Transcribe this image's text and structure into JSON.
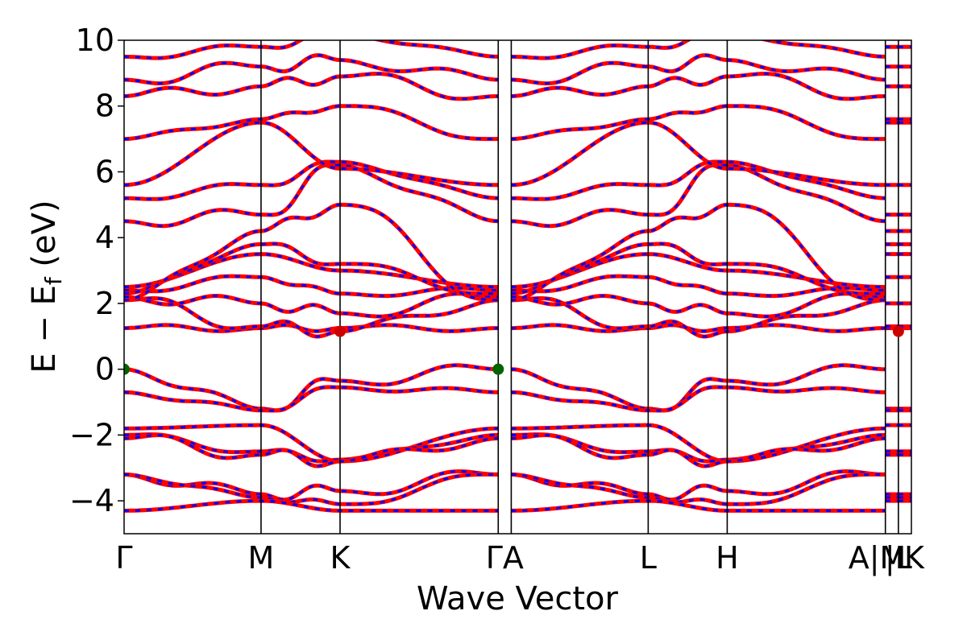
{
  "chart_data": {
    "type": "line",
    "title": "",
    "xlabel": "Wave Vector",
    "ylabel_main": "E − E",
    "ylabel_sub": "f",
    "ylabel_unit": " (eV)",
    "ylim": [
      -5,
      10
    ],
    "yticks": [
      -4,
      -2,
      0,
      2,
      4,
      6,
      8,
      10
    ],
    "ytick_labels": [
      "−4",
      "−2",
      "0",
      "2",
      "4",
      "6",
      "8",
      "10"
    ],
    "kpath": [
      {
        "label": "Γ",
        "k": 0.0
      },
      {
        "label": "M",
        "k": 1.0
      },
      {
        "label": "K",
        "k": 1.577
      },
      {
        "label": "Γ",
        "k": 2.732
      },
      {
        "label": "A",
        "k": 2.827
      },
      {
        "label": "L",
        "k": 3.827
      },
      {
        "label": "H",
        "k": 4.404
      },
      {
        "label": "A",
        "k": 5.559
      },
      {
        "label": "M",
        "k": 5.559
      },
      {
        "label": "L",
        "k": 5.654
      },
      {
        "label": "K",
        "k": 5.749
      }
    ],
    "xtick_text": [
      "Γ",
      "M",
      "K",
      "ΓA",
      "L",
      "H",
      "A|M",
      "|L",
      "K"
    ],
    "vbm_markers": [
      {
        "k": 0.0,
        "energy": 0.0
      },
      {
        "k": 2.732,
        "energy": 0.0
      }
    ],
    "cbm_markers": [
      {
        "k": 1.577,
        "energy": 1.15
      },
      {
        "k": 5.654,
        "energy": 1.15
      }
    ],
    "series": [
      {
        "spin": "up",
        "color": "#0000ff"
      },
      {
        "spin": "down",
        "color": "#ff0000"
      }
    ],
    "valence_bands": [
      {
        "g": 0.0,
        "m": -1.2,
        "k": -0.35,
        "h": -0.35,
        "l": -1.2
      },
      {
        "g": -0.7,
        "m": -1.25,
        "k": -0.55,
        "h": -0.55,
        "l": -1.25
      },
      {
        "g": -1.8,
        "m": -1.7,
        "k": -2.8,
        "h": -2.8,
        "l": -1.7
      },
      {
        "g": -2.0,
        "m": -2.5,
        "k": -2.75,
        "h": -2.75,
        "l": -2.5
      },
      {
        "g": -2.1,
        "m": -2.6,
        "k": -2.8,
        "h": -2.8,
        "l": -2.6
      },
      {
        "g": -3.2,
        "m": -3.8,
        "k": -3.7,
        "h": -3.7,
        "l": -3.8
      },
      {
        "g": -3.2,
        "m": -3.9,
        "k": -4.1,
        "h": -4.1,
        "l": -3.9
      },
      {
        "g": -4.3,
        "m": -4.0,
        "k": -4.3,
        "h": -4.3,
        "l": -4.0
      }
    ],
    "conduction_bands": [
      {
        "g": 1.25,
        "m": 1.25,
        "k": 1.25,
        "h": 1.25,
        "l": 1.25
      },
      {
        "g": 2.1,
        "m": 1.3,
        "k": 1.15,
        "h": 1.15,
        "l": 1.3
      },
      {
        "g": 2.2,
        "m": 2.0,
        "k": 1.7,
        "h": 1.7,
        "l": 2.0
      },
      {
        "g": 2.4,
        "m": 2.8,
        "k": 2.3,
        "h": 2.3,
        "l": 2.8
      },
      {
        "g": 2.5,
        "m": 3.5,
        "k": 3.0,
        "h": 3.0,
        "l": 3.5
      },
      {
        "g": 2.3,
        "m": 3.8,
        "k": 3.2,
        "h": 3.2,
        "l": 3.8
      },
      {
        "g": 2.1,
        "m": 4.2,
        "k": 5.0,
        "h": 5.0,
        "l": 4.2
      },
      {
        "g": 4.5,
        "m": 4.7,
        "k": 6.2,
        "h": 6.2,
        "l": 4.7
      },
      {
        "g": 5.2,
        "m": 5.6,
        "k": 6.3,
        "h": 6.3,
        "l": 5.6
      },
      {
        "g": 5.6,
        "m": 7.5,
        "k": 6.1,
        "h": 6.1,
        "l": 7.5
      },
      {
        "g": 7.0,
        "m": 7.6,
        "k": 8.0,
        "h": 8.0,
        "l": 7.6
      },
      {
        "g": 8.3,
        "m": 8.6,
        "k": 8.9,
        "h": 8.9,
        "l": 8.6
      },
      {
        "g": 8.8,
        "m": 9.2,
        "k": 9.4,
        "h": 9.4,
        "l": 9.2
      },
      {
        "g": 9.5,
        "m": 9.8,
        "k": 10.2,
        "h": 10.2,
        "l": 9.8
      }
    ]
  }
}
